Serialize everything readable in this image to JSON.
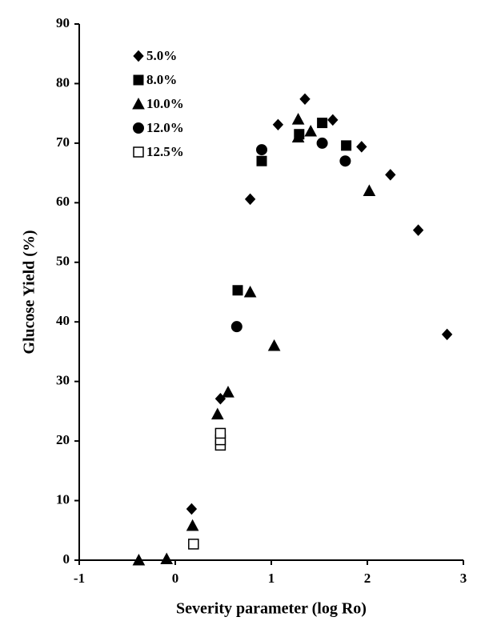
{
  "chart_data": {
    "type": "scatter",
    "xlabel": "Severity parameter (log Ro)",
    "ylabel": "Glucose Yield (%)",
    "xlim": [
      -1,
      3
    ],
    "xticks": [
      -1,
      0,
      1,
      2,
      3
    ],
    "ylim": [
      0,
      90
    ],
    "yticks": [
      0,
      10,
      20,
      30,
      40,
      50,
      60,
      70,
      80,
      90
    ],
    "legend": "upper left",
    "series": [
      {
        "name": "5.0%",
        "marker": "diamond",
        "color": "#000000",
        "filled": true,
        "x": [
          0.17,
          0.47,
          0.78,
          1.07,
          1.35,
          1.64,
          1.94,
          2.24,
          2.53,
          2.83
        ],
        "y": [
          8.6,
          27.1,
          60.6,
          73.1,
          77.4,
          73.9,
          69.4,
          64.7,
          55.4,
          37.9
        ]
      },
      {
        "name": "8.0%",
        "marker": "square",
        "color": "#000000",
        "filled": true,
        "x": [
          0.65,
          0.9,
          1.29,
          1.53,
          1.78
        ],
        "y": [
          45.3,
          67,
          71.5,
          73.4,
          69.6
        ]
      },
      {
        "name": "10.0%",
        "marker": "triangle",
        "color": "#000000",
        "filled": true,
        "x": [
          -0.38,
          -0.09,
          0.18,
          0.44,
          0.55,
          0.78,
          1.03,
          1.28,
          1.28,
          1.41,
          2.02
        ],
        "y": [
          0,
          0.2,
          5.8,
          24.5,
          28.2,
          45,
          36,
          71,
          74,
          72,
          62
        ]
      },
      {
        "name": "12.0%",
        "marker": "circle",
        "color": "#000000",
        "filled": true,
        "x": [
          0.64,
          0.9,
          1.53,
          1.77
        ],
        "y": [
          39.2,
          68.9,
          70,
          67
        ]
      },
      {
        "name": "12.5%",
        "marker": "square",
        "color": "#000000",
        "filled": false,
        "x": [
          0.19,
          0.47,
          0.47,
          0.47
        ],
        "y": [
          2.7,
          19.3,
          20.2,
          21.3
        ]
      }
    ]
  }
}
